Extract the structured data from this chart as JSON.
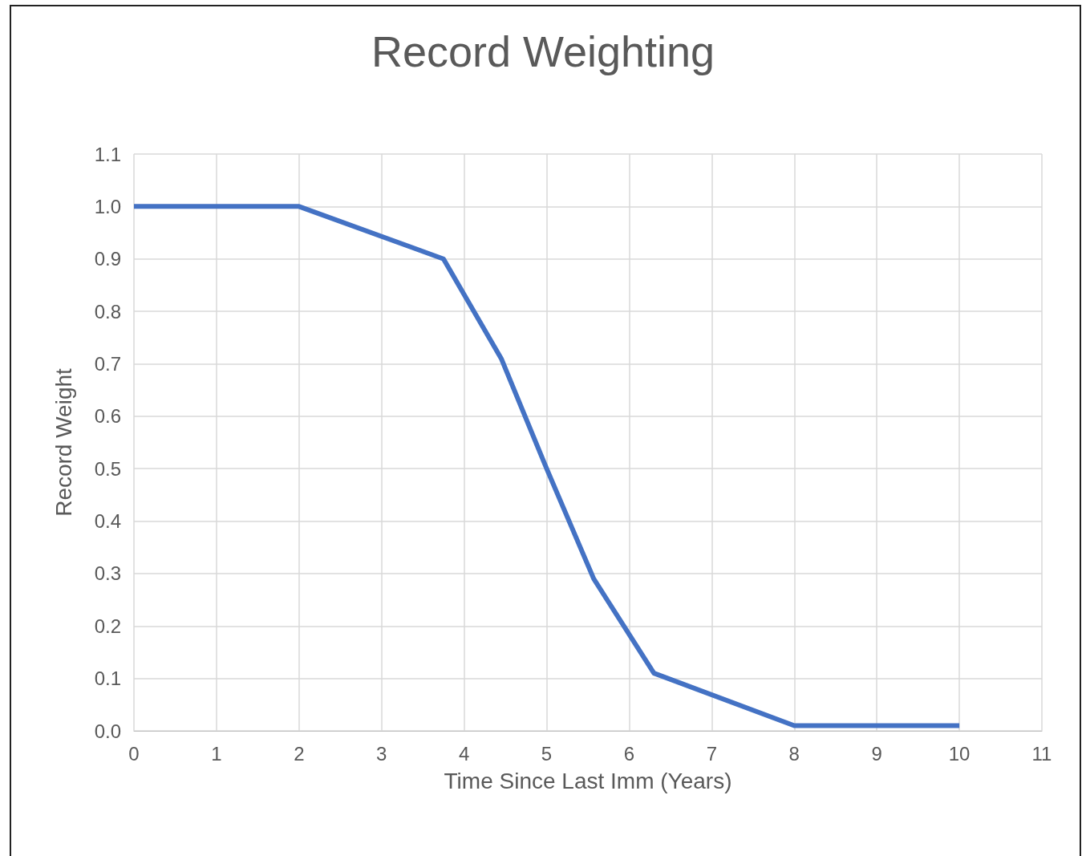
{
  "chart_data": {
    "type": "line",
    "title": "Record Weighting",
    "xlabel": "Time Since Last Imm (Years)",
    "ylabel": "Record Weight",
    "x": [
      0,
      2,
      3.75,
      4.45,
      5,
      5.57,
      6.3,
      8,
      10
    ],
    "series": [
      {
        "color": "#4472c4",
        "values": [
          1.0,
          1.0,
          0.9,
          0.71,
          0.5,
          0.29,
          0.11,
          0.01,
          0.01
        ]
      }
    ],
    "xlim": [
      0,
      11
    ],
    "xticks": [
      0,
      1,
      2,
      3,
      4,
      5,
      6,
      7,
      8,
      9,
      10,
      11
    ],
    "ylim": [
      0,
      1.1
    ],
    "yticks": [
      {
        "value": 0,
        "label": "0.0"
      },
      {
        "value": 0.1,
        "label": "0.1"
      },
      {
        "value": 0.2,
        "label": "0.2"
      },
      {
        "value": 0.3,
        "label": "0.3"
      },
      {
        "value": 0.4,
        "label": "0.4"
      },
      {
        "value": 0.5,
        "label": "0.5"
      },
      {
        "value": 0.6,
        "label": "0.6"
      },
      {
        "value": 0.7,
        "label": "0.7"
      },
      {
        "value": 0.8,
        "label": "0.8"
      },
      {
        "value": 0.9,
        "label": "0.9"
      },
      {
        "value": 1.0,
        "label": "1.0"
      },
      {
        "value": 1.1,
        "label": "1.1"
      }
    ],
    "grid": true,
    "marker": "none",
    "line_style": "solid"
  }
}
